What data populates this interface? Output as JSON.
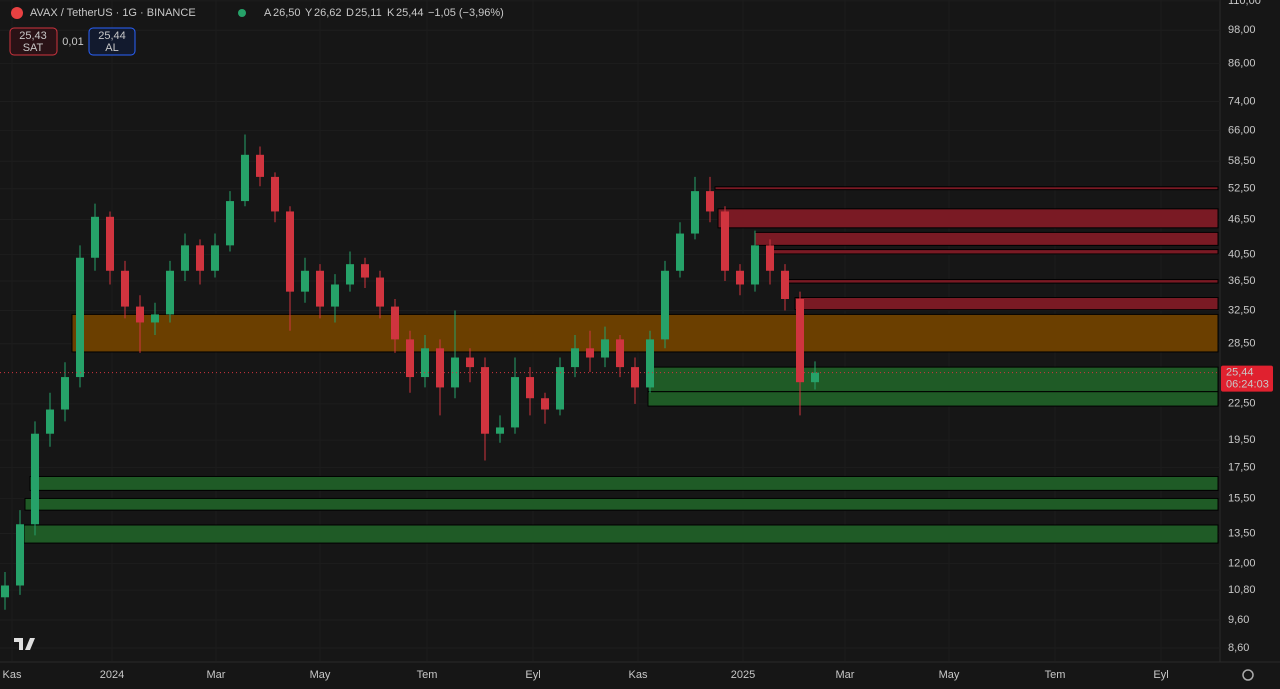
{
  "header": {
    "symbol": "AVAX / TetherUS · 1G · BINANCE",
    "ohlc": [
      {
        "key": "A",
        "value": "26,50"
      },
      {
        "key": "Y",
        "value": "26,62"
      },
      {
        "key": "D",
        "value": "25,11"
      },
      {
        "key": "K",
        "value": "25,44"
      }
    ],
    "change": "−1,05 (−3,96%)",
    "sell_price": "25,43",
    "sell_label": "SAT",
    "spread": "0,01",
    "buy_price": "25,44",
    "buy_label": "AL"
  },
  "price_tag": {
    "time": "06:24:03"
  },
  "chart_data": {
    "type": "candlestick",
    "log_scale": true,
    "grid": true,
    "ylim": [
      8.17,
      110.4
    ],
    "yticks": [
      {
        "value": 110,
        "label": "110,00"
      },
      {
        "value": 98,
        "label": "98,00"
      },
      {
        "value": 86,
        "label": "86,00"
      },
      {
        "value": 74,
        "label": "74,00"
      },
      {
        "value": 66,
        "label": "66,00"
      },
      {
        "value": 58.5,
        "label": "58,50"
      },
      {
        "value": 52.5,
        "label": "52,50"
      },
      {
        "value": 46.5,
        "label": "46,50"
      },
      {
        "value": 40.5,
        "label": "40,50"
      },
      {
        "value": 36.5,
        "label": "36,50"
      },
      {
        "value": 32.5,
        "label": "32,50"
      },
      {
        "value": 28.5,
        "label": "28,50"
      },
      {
        "value": 22.5,
        "label": "22,50"
      },
      {
        "value": 19.5,
        "label": "19,50"
      },
      {
        "value": 17.5,
        "label": "17,50"
      },
      {
        "value": 15.5,
        "label": "15,50"
      },
      {
        "value": 13.5,
        "label": "13,50"
      },
      {
        "value": 12,
        "label": "12,00"
      },
      {
        "value": 10.8,
        "label": "10,80"
      },
      {
        "value": 9.6,
        "label": "9,60"
      },
      {
        "value": 8.6,
        "label": "8,60"
      }
    ],
    "x_labels": [
      "Kas",
      "2024",
      "Mar",
      "May",
      "Tem",
      "Eyl",
      "Kas",
      "2025",
      "Mar",
      "May",
      "Tem",
      "Eyl"
    ],
    "up_color": "#26a269",
    "down_color": "#d0343f",
    "series": {
      "open": [
        10.5,
        11,
        14,
        20,
        22,
        25,
        40,
        47,
        38,
        33,
        31,
        32,
        38,
        42,
        38,
        42,
        50,
        60,
        55,
        48,
        35,
        38,
        33,
        36,
        39,
        37,
        33,
        29,
        25,
        28,
        24,
        27,
        26,
        20,
        20.5,
        25,
        23,
        22,
        26,
        28,
        27,
        29,
        26,
        24,
        29,
        38,
        44,
        52,
        48,
        38,
        36,
        42,
        38,
        34,
        24.5
      ],
      "high": [
        11.6,
        14.8,
        21,
        23.5,
        26.5,
        42,
        49.5,
        48,
        39.5,
        34.5,
        33.5,
        39.5,
        44,
        43,
        44,
        52,
        65,
        62,
        56,
        49,
        40,
        39,
        37.5,
        41,
        40,
        38,
        34,
        30,
        29.5,
        29,
        32.5,
        28,
        27,
        21.5,
        27,
        26,
        23.5,
        27,
        29.5,
        30,
        30.5,
        29.5,
        27,
        30,
        39.5,
        46,
        55,
        55,
        49,
        39,
        44.5,
        43,
        39,
        35,
        26.6
      ],
      "low": [
        10,
        10.6,
        13.4,
        19,
        21,
        24,
        38,
        36,
        31.5,
        27.5,
        29.5,
        31,
        36.5,
        36,
        37,
        41,
        49,
        53,
        46,
        30,
        33.5,
        31.5,
        31,
        35,
        35.5,
        31.5,
        27.5,
        23.5,
        24,
        21.5,
        23,
        24.5,
        18,
        19.3,
        20,
        21.5,
        20.8,
        21.5,
        25,
        25.5,
        26,
        25,
        22.5,
        23.5,
        28,
        37,
        43,
        46,
        36.5,
        34.5,
        35,
        36,
        32.5,
        21.5,
        23.8
      ],
      "close": [
        11,
        14,
        20,
        22,
        25,
        40,
        47,
        38,
        33,
        31,
        32,
        38,
        42,
        38,
        42,
        50,
        60,
        55,
        48,
        35,
        38,
        33,
        36,
        39,
        37,
        33,
        29,
        25,
        28,
        24,
        27,
        26,
        20,
        20.5,
        25,
        23,
        22,
        26,
        28,
        27,
        29,
        26,
        24,
        29,
        38,
        44,
        52,
        48,
        38,
        36,
        42,
        38,
        34,
        24.5,
        25.44
      ],
      "last_value_label": "25,44"
    },
    "zones": [
      {
        "top": 32.0,
        "bottom": 27.6,
        "color": "#6b3f00"
      },
      {
        "top": 26.0,
        "bottom": 23.6,
        "color": "#1f5b26"
      },
      {
        "top": 23.6,
        "bottom": 22.3,
        "color": "#1f5b26"
      },
      {
        "top": 16.9,
        "bottom": 16.0,
        "color": "#1f5b26"
      },
      {
        "top": 15.5,
        "bottom": 14.8,
        "color": "#1f5b26"
      },
      {
        "top": 13.96,
        "bottom": 13.0,
        "color": "#1f5b26"
      },
      {
        "top": 52.9,
        "bottom": 52.3,
        "color": "#7a1a24"
      },
      {
        "top": 48.5,
        "bottom": 45.0,
        "color": "#7a1a24"
      },
      {
        "top": 44.2,
        "bottom": 42.0,
        "color": "#7a1a24"
      },
      {
        "top": 41.3,
        "bottom": 40.6,
        "color": "#7a1a24"
      },
      {
        "top": 36.7,
        "bottom": 36.2,
        "color": "#7a1a24"
      },
      {
        "top": 34.2,
        "bottom": 32.6,
        "color": "#7a1a24"
      }
    ]
  }
}
